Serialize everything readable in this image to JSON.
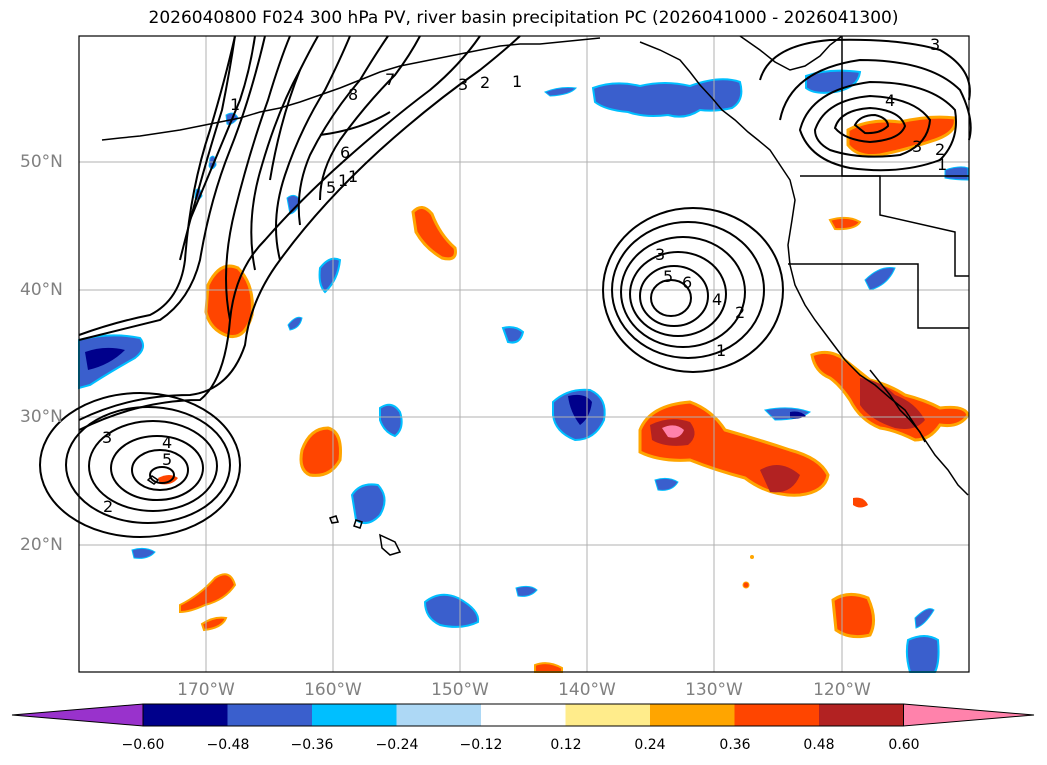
{
  "title": "2026040800 F024 300 hPa PV, river basin precipitation PC (2026041000 - 2026041300)",
  "map": {
    "lat_labels": [
      "50°N",
      "40°N",
      "30°N",
      "20°N"
    ],
    "lon_labels": [
      "170°W",
      "160°W",
      "150°W",
      "140°W",
      "130°W",
      "120°W"
    ],
    "contour_labels": [
      "1",
      "8",
      "7",
      "3",
      "2",
      "1",
      "6",
      "5",
      "1",
      "1",
      "3",
      "5",
      "6",
      "4",
      "2",
      "1",
      "3",
      "4",
      "5",
      "2",
      "4",
      "3",
      "2",
      "1",
      "3"
    ]
  },
  "colorbar": {
    "tick_labels": [
      "−0.60",
      "−0.48",
      "−0.36",
      "−0.24",
      "−0.12",
      "0.12",
      "0.24",
      "0.36",
      "0.48",
      "0.60"
    ],
    "colors": [
      "#9932cc",
      "#00008b",
      "#3a5fcd",
      "#00bfff",
      "#add8f5",
      "#ffffff",
      "#ffec8b",
      "#ffa500",
      "#ff4500",
      "#b22222",
      "#ff82ab"
    ]
  }
}
